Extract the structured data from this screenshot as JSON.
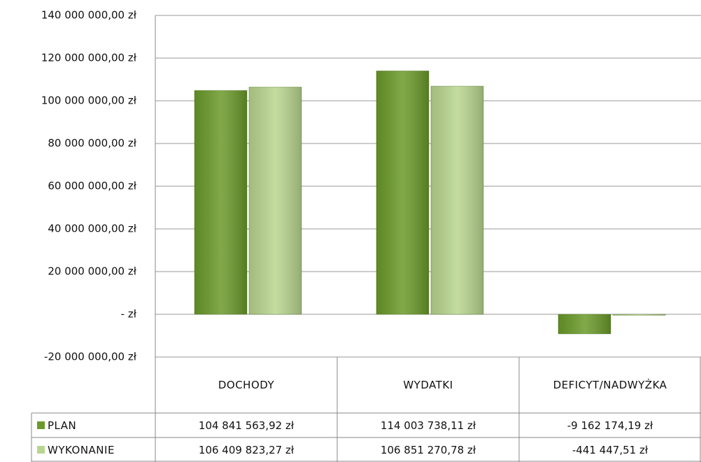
{
  "chart_data": {
    "type": "bar",
    "categories": [
      "DOCHODY",
      "WYDATKI",
      "DEFICYT/NADWYŻKA"
    ],
    "series": [
      {
        "name": "PLAN",
        "color": "#6b9a2a",
        "values": [
          104841563.92,
          114003738.11,
          -9162174.19
        ],
        "value_labels": [
          "104 841 563,92 zł",
          "114 003 738,11 zł",
          "-9 162 174,19 zł"
        ]
      },
      {
        "name": "WYKONANIE",
        "color": "#b9d68f",
        "values": [
          106409823.27,
          106851270.78,
          -441447.51
        ],
        "value_labels": [
          "106 409 823,27 zł",
          "106 851 270,78 zł",
          "-441 447,51 zł"
        ]
      }
    ],
    "ylim": [
      -20000000,
      140000000
    ],
    "yticks": [
      {
        "value": -20000000,
        "label": "-20 000 000,00 zł"
      },
      {
        "value": 0,
        "label": "-  zł"
      },
      {
        "value": 20000000,
        "label": "20 000 000,00 zł"
      },
      {
        "value": 40000000,
        "label": "40 000 000,00 zł"
      },
      {
        "value": 60000000,
        "label": "60 000 000,00 zł"
      },
      {
        "value": 80000000,
        "label": "80 000 000,00 zł"
      },
      {
        "value": 100000000,
        "label": "100 000 000,00 zł"
      },
      {
        "value": 120000000,
        "label": "120 000 000,00 zł"
      },
      {
        "value": 140000000,
        "label": "140 000 000,00 zł"
      }
    ],
    "grid": true
  }
}
